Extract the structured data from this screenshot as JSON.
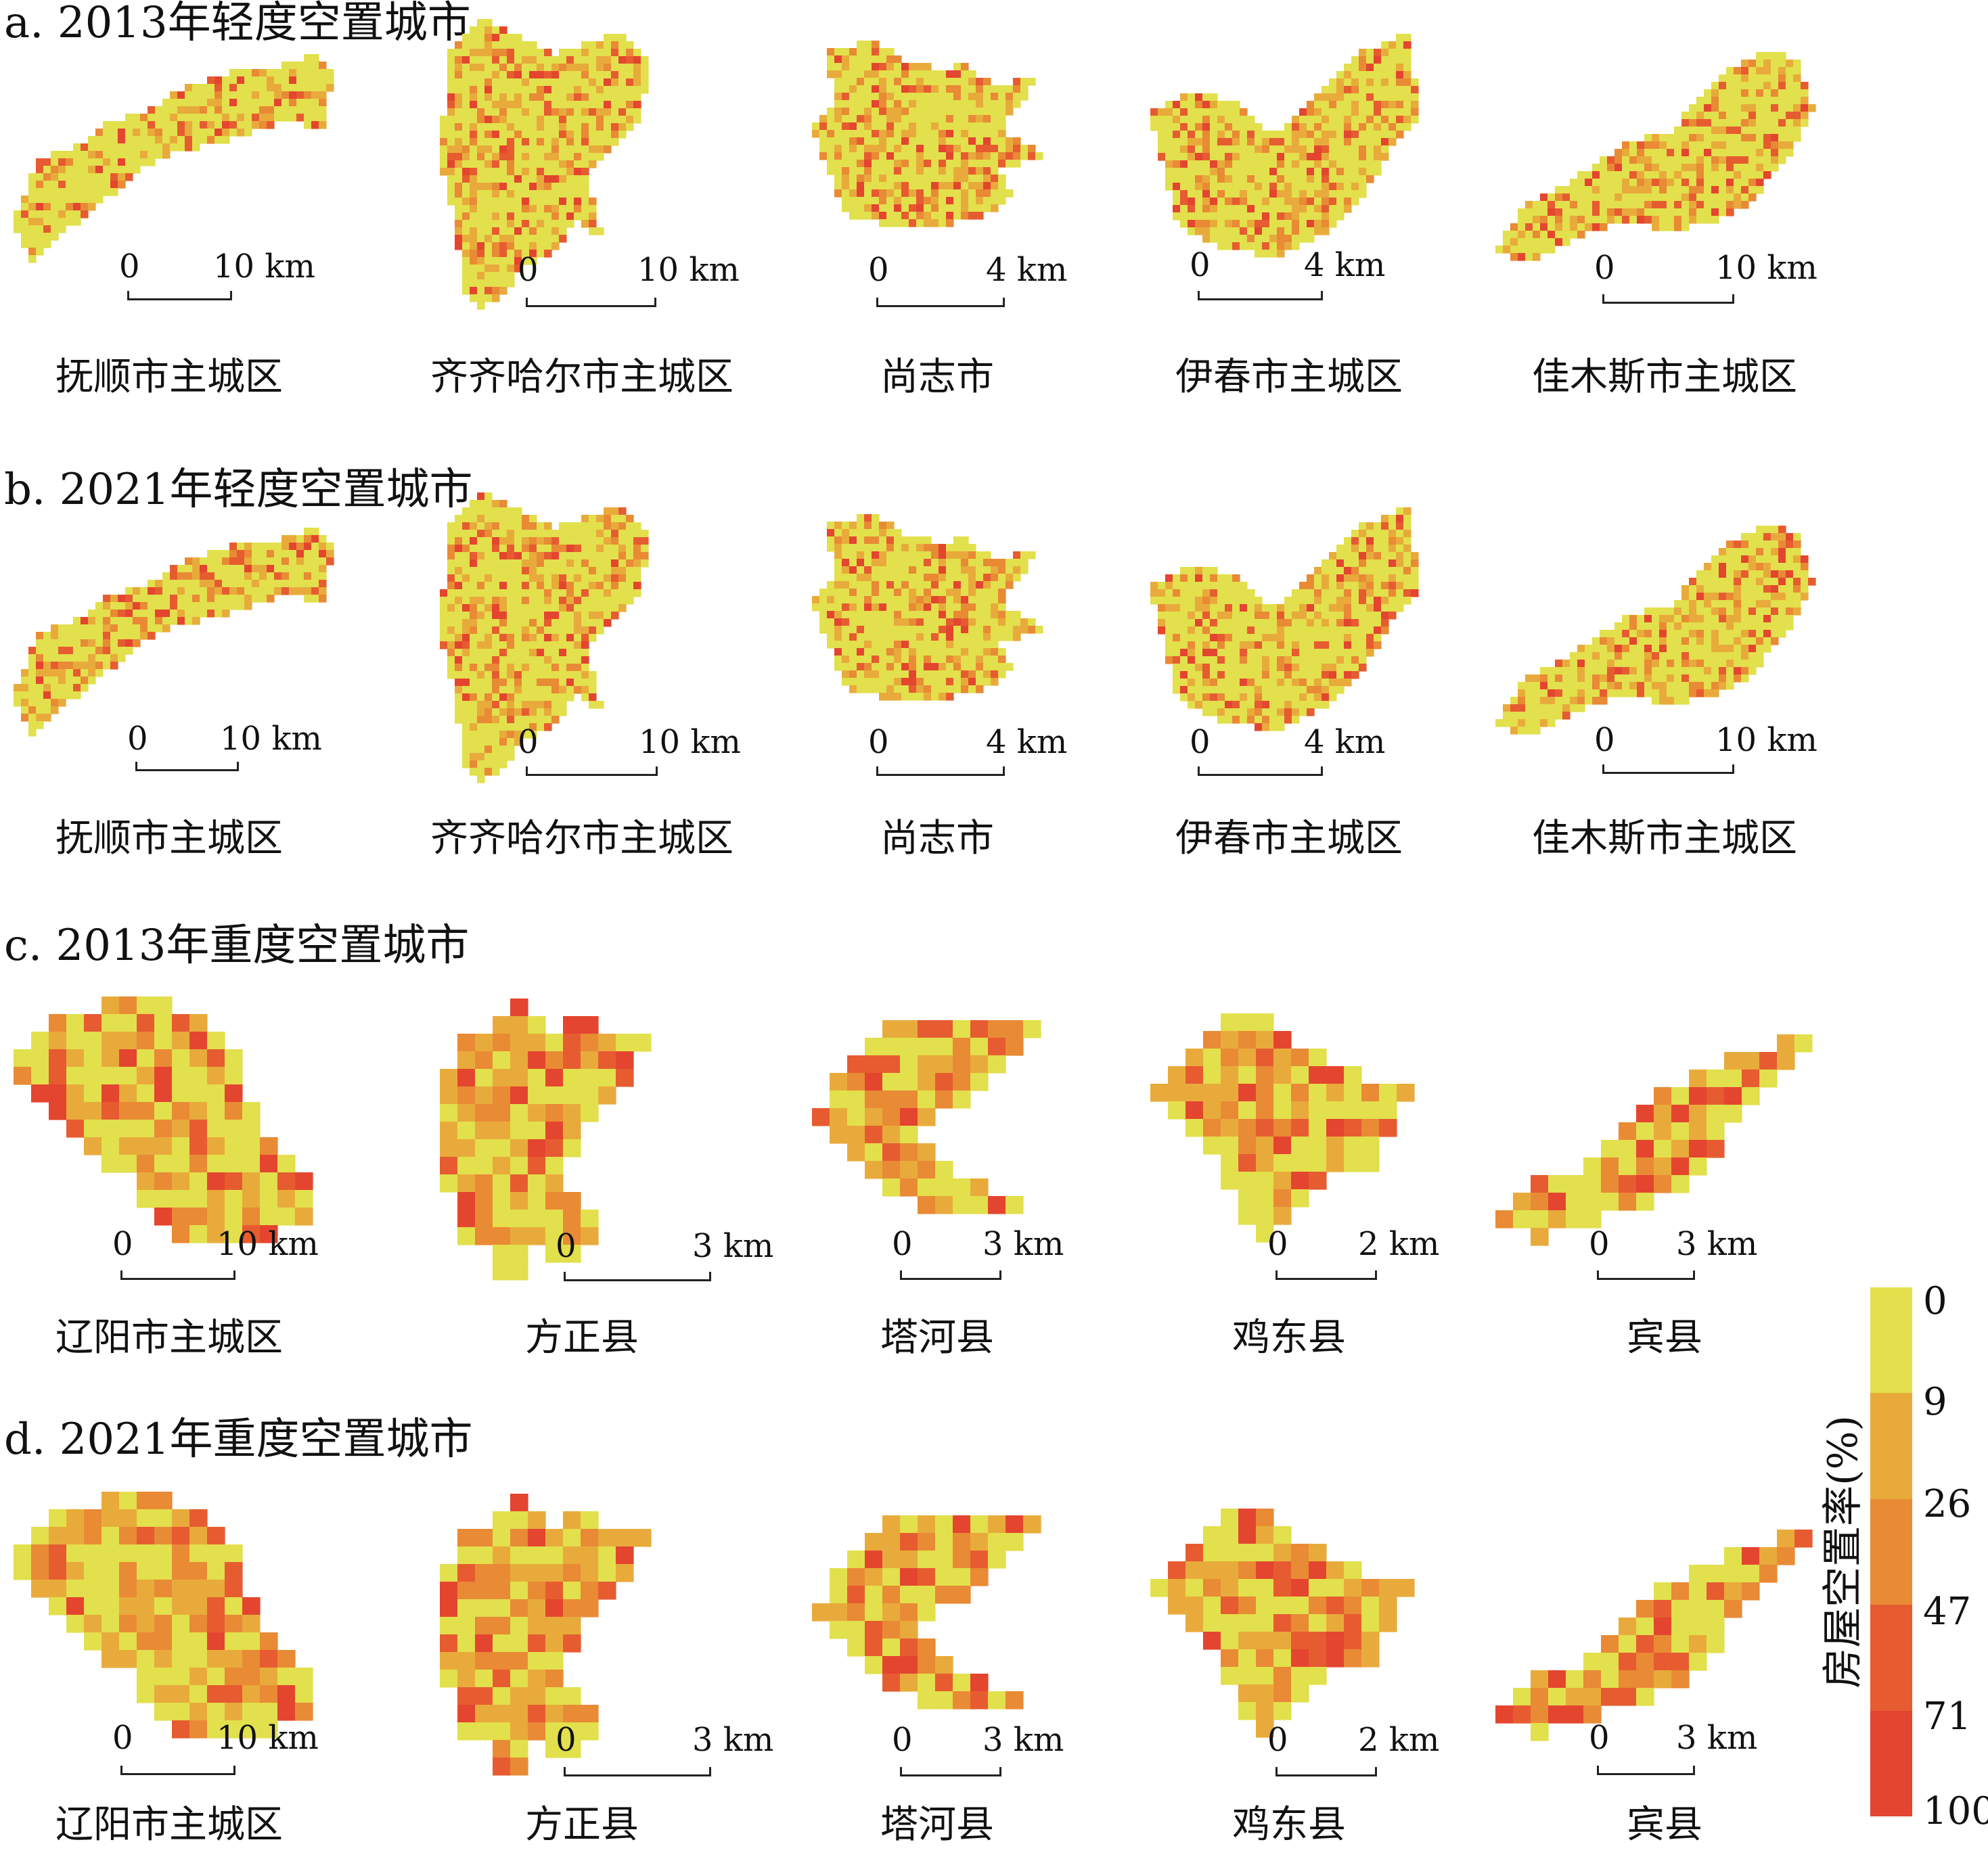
{
  "colors": {
    "c0": "#e2e04c",
    "c1": "#e8ab3b",
    "c2": "#e98a35",
    "c3": "#e65c30",
    "c4": "#e4452f"
  },
  "sections": [
    {
      "title": "a. 2013年轻度空置城市",
      "maps": [
        {
          "name": "抚顺市主城区",
          "scale_left": "0",
          "scale_right": "10 km",
          "shape": "fushun"
        },
        {
          "name": "齐齐哈尔市主城区",
          "scale_left": "0",
          "scale_right": "10 km",
          "shape": "qiqihar"
        },
        {
          "name": "尚志市",
          "scale_left": "0",
          "scale_right": "4 km",
          "shape": "shangzhi"
        },
        {
          "name": "伊春市主城区",
          "scale_left": "0",
          "scale_right": "4 km",
          "shape": "yichun"
        },
        {
          "name": "佳木斯市主城区",
          "scale_left": "0",
          "scale_right": "10 km",
          "shape": "jiamusi"
        }
      ]
    },
    {
      "title": "b. 2021年轻度空置城市",
      "maps": [
        {
          "name": "抚顺市主城区",
          "scale_left": "0",
          "scale_right": "10 km",
          "shape": "fushun"
        },
        {
          "name": "齐齐哈尔市主城区",
          "scale_left": "0",
          "scale_right": "10 km",
          "shape": "qiqihar"
        },
        {
          "name": "尚志市",
          "scale_left": "0",
          "scale_right": "4 km",
          "shape": "shangzhi"
        },
        {
          "name": "伊春市主城区",
          "scale_left": "0",
          "scale_right": "4 km",
          "shape": "yichun"
        },
        {
          "name": "佳木斯市主城区",
          "scale_left": "0",
          "scale_right": "10 km",
          "shape": "jiamusi"
        }
      ]
    },
    {
      "title": "c. 2013年重度空置城市",
      "maps": [
        {
          "name": "辽阳市主城区",
          "scale_left": "0",
          "scale_right": "10 km",
          "shape": "liaoyang"
        },
        {
          "name": "方正县",
          "scale_left": "0",
          "scale_right": "3 km",
          "shape": "fangzheng"
        },
        {
          "name": "塔河县",
          "scale_left": "0",
          "scale_right": "3 km",
          "shape": "tahe"
        },
        {
          "name": "鸡东县",
          "scale_left": "0",
          "scale_right": "2 km",
          "shape": "jidong"
        },
        {
          "name": "宾县",
          "scale_left": "0",
          "scale_right": "3 km",
          "shape": "binxian"
        }
      ]
    },
    {
      "title": "d. 2021年重度空置城市",
      "maps": [
        {
          "name": "辽阳市主城区",
          "scale_left": "0",
          "scale_right": "10 km",
          "shape": "liaoyang"
        },
        {
          "name": "方正县",
          "scale_left": "0",
          "scale_right": "3 km",
          "shape": "fangzheng"
        },
        {
          "name": "塔河县",
          "scale_left": "0",
          "scale_right": "3 km",
          "shape": "tahe"
        },
        {
          "name": "鸡东县",
          "scale_left": "0",
          "scale_right": "2 km",
          "shape": "jidong"
        },
        {
          "name": "宾县",
          "scale_left": "0",
          "scale_right": "3 km",
          "shape": "binxian"
        }
      ]
    }
  ],
  "legend": {
    "title": "房屋空置率(%)",
    "ticks": [
      "0",
      "9",
      "26",
      "47",
      "71",
      "100"
    ],
    "classes": [
      "0–9",
      "9–26",
      "26–47",
      "47–71",
      "71–100"
    ]
  }
}
